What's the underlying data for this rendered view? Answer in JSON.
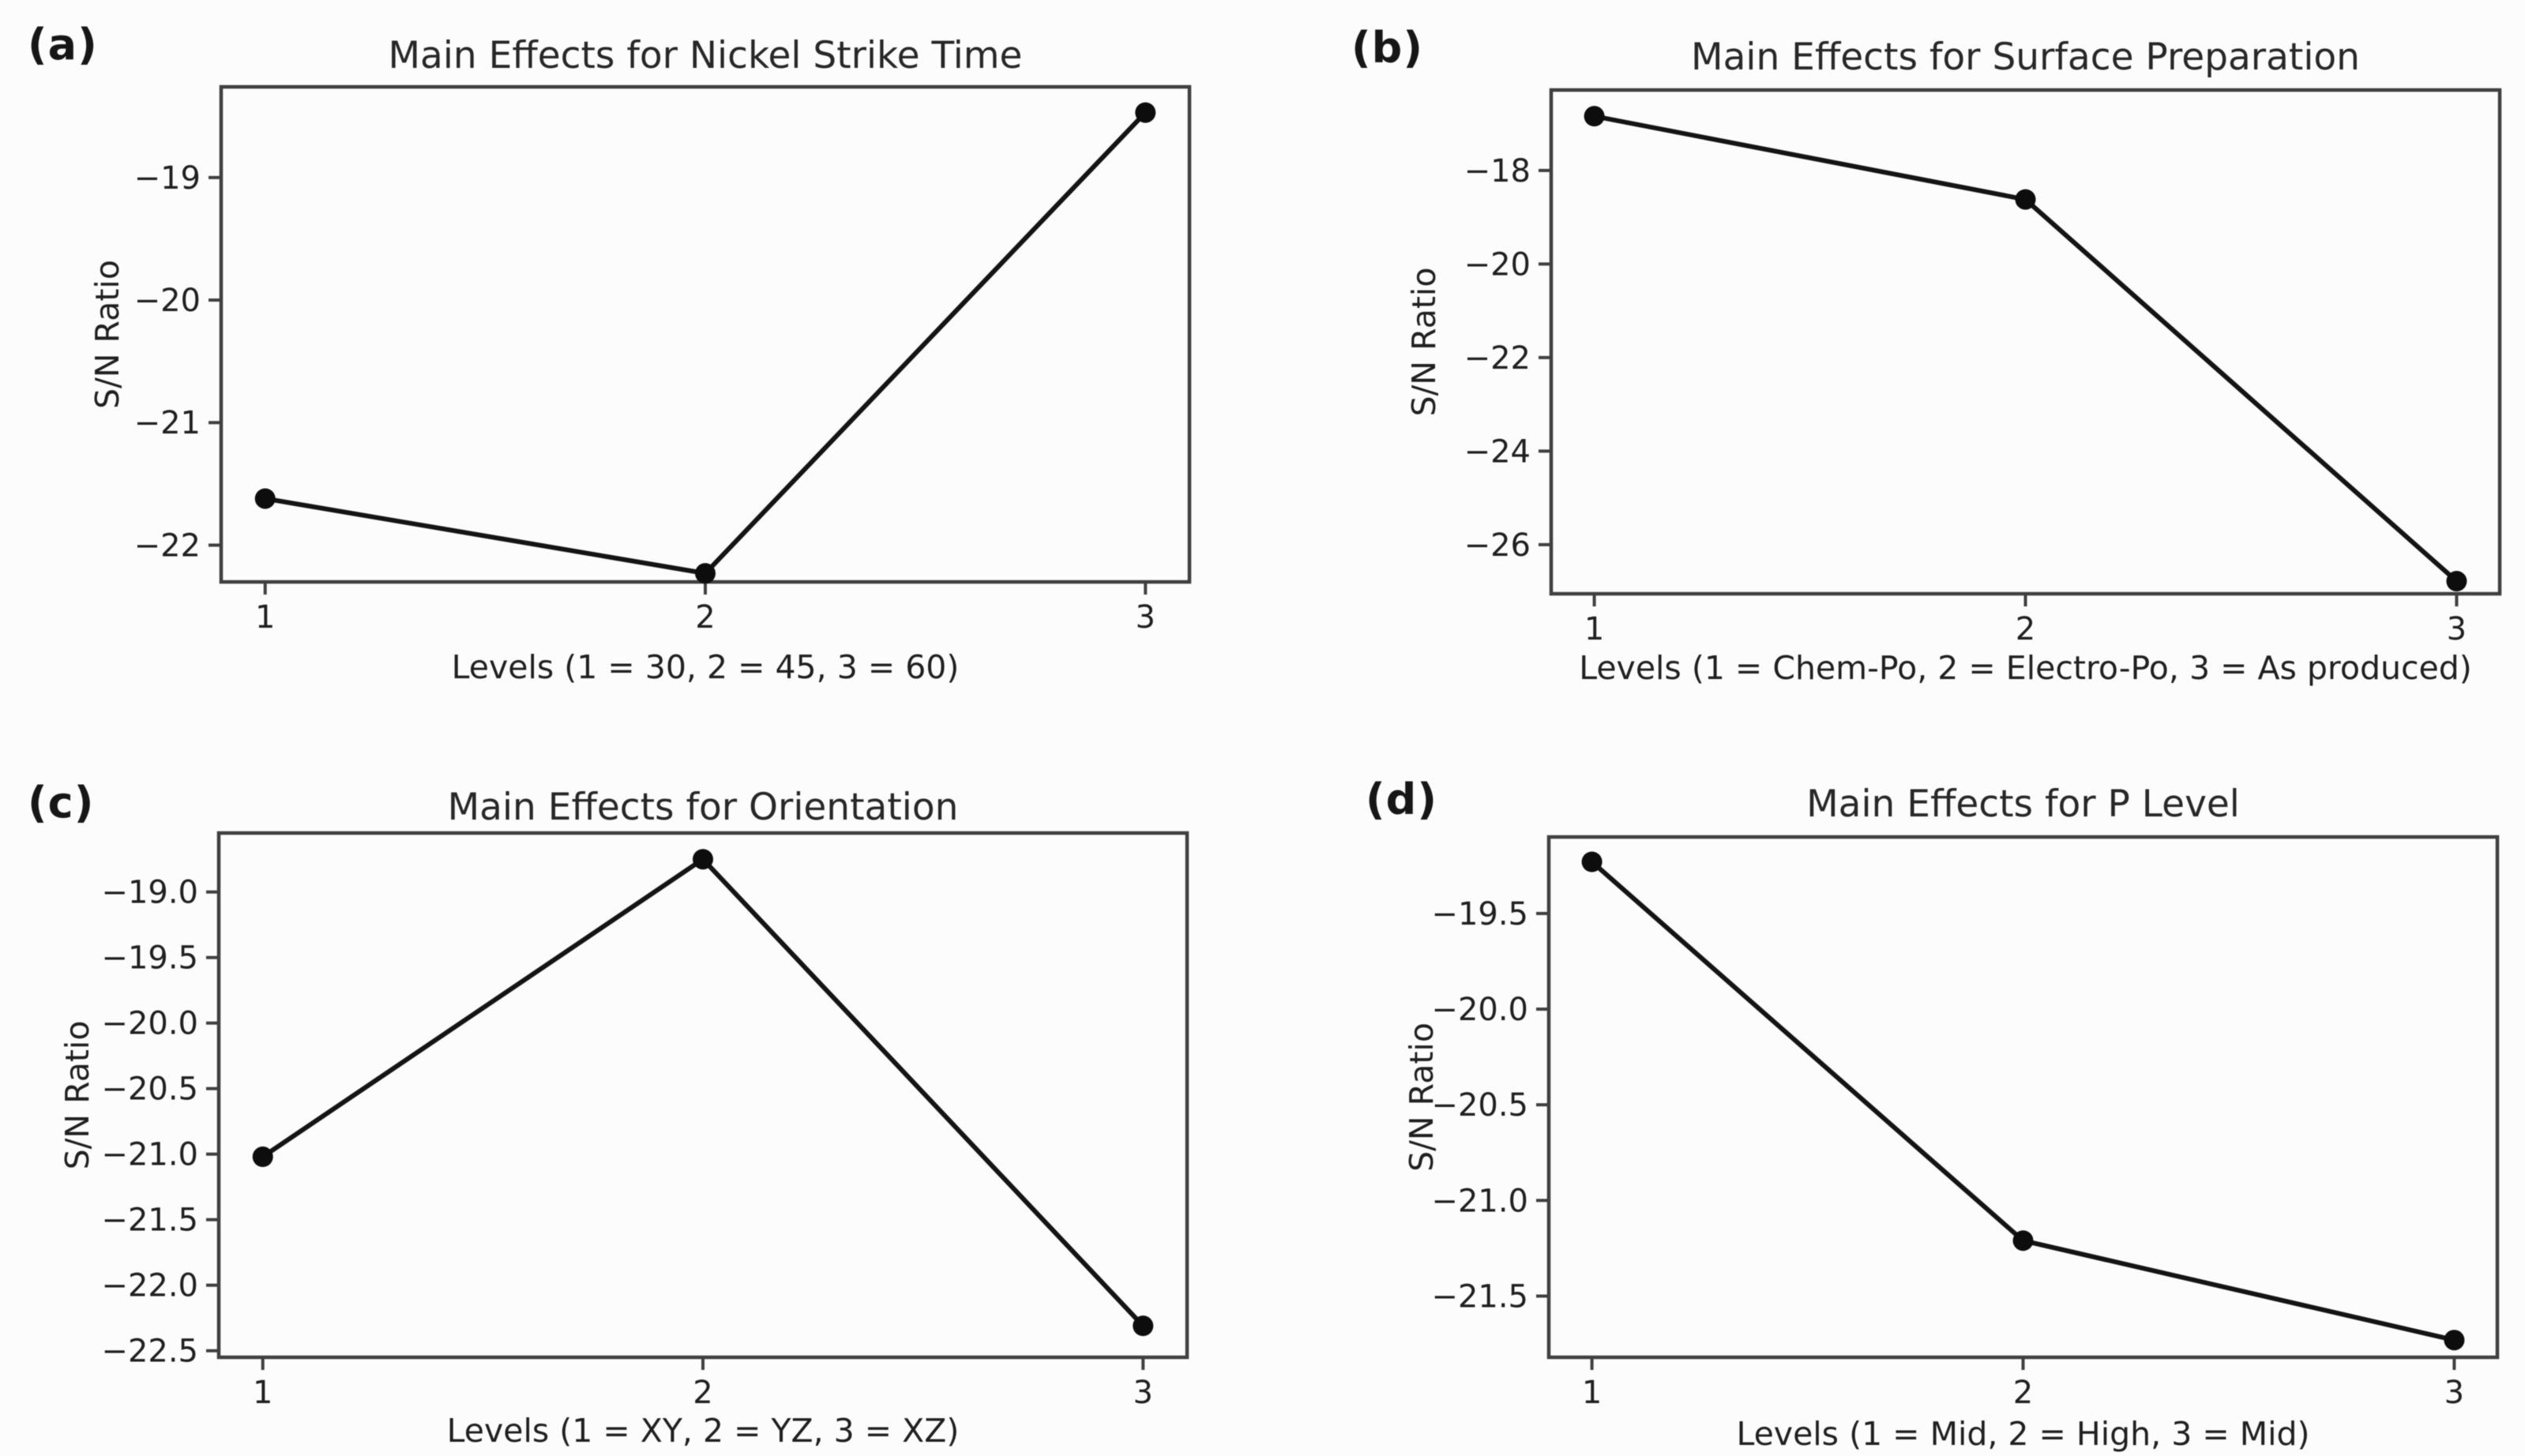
{
  "figure": {
    "background": "#fcfcfc",
    "text_color": "#1f1f1f",
    "title_color": "#272727",
    "line_color": "#141414",
    "marker_color": "#0d0d0d",
    "spine_color": "#3f3f3f"
  },
  "chart_data": [
    {
      "id": "a",
      "panel_label": "(a)",
      "type": "line",
      "title": "Main Effects for Nickel Strike Time",
      "xlabel": "Levels (1 = 30, 2 = 45, 3 = 60)",
      "ylabel": "S/N Ratio",
      "x": [
        1,
        2,
        3
      ],
      "xtick_labels": [
        "1",
        "2",
        "3"
      ],
      "values": [
        -21.62,
        -22.23,
        -18.47
      ],
      "yticks": [
        -19,
        -20,
        -21,
        -22
      ],
      "ytick_labels": [
        "−19",
        "−20",
        "−21",
        "−22"
      ],
      "xlim": [
        0.9,
        3.1
      ],
      "ylim": [
        -22.3,
        -18.26
      ],
      "grid": false,
      "legend": null,
      "marker": "filled-circle"
    },
    {
      "id": "b",
      "panel_label": "(b)",
      "type": "line",
      "title": "Main Effects for Surface Preparation",
      "xlabel": "Levels (1 = Chem-Po, 2 = Electro-Po, 3 = As produced)",
      "ylabel": "S/N Ratio",
      "x": [
        1,
        2,
        3
      ],
      "xtick_labels": [
        "1",
        "2",
        "3"
      ],
      "values": [
        -16.84,
        -18.62,
        -26.78
      ],
      "yticks": [
        -18,
        -20,
        -22,
        -24,
        -26
      ],
      "ytick_labels": [
        "−18",
        "−20",
        "−22",
        "−24",
        "−26"
      ],
      "xlim": [
        0.9,
        3.1
      ],
      "ylim": [
        -27.05,
        -16.28
      ],
      "grid": false,
      "legend": null,
      "marker": "filled-circle"
    },
    {
      "id": "c",
      "panel_label": "(c)",
      "type": "line",
      "title": "Main Effects for Orientation",
      "xlabel": "Levels (1 = XY, 2 = YZ, 3 = XZ)",
      "ylabel": "S/N Ratio",
      "x": [
        1,
        2,
        3
      ],
      "xtick_labels": [
        "1",
        "2",
        "3"
      ],
      "values": [
        -21.02,
        -18.75,
        -22.31
      ],
      "yticks": [
        -19.0,
        -19.5,
        -20.0,
        -20.5,
        -21.0,
        -21.5,
        -22.0,
        -22.5
      ],
      "ytick_labels": [
        "−19.0",
        "−19.5",
        "−20.0",
        "−20.5",
        "−21.0",
        "−21.5",
        "−22.0",
        "−22.5"
      ],
      "xlim": [
        0.9,
        3.1
      ],
      "ylim": [
        -22.55,
        -18.55
      ],
      "grid": false,
      "legend": null,
      "marker": "filled-circle"
    },
    {
      "id": "d",
      "panel_label": "(d)",
      "type": "line",
      "title": "Main Effects for P Level",
      "xlabel": "Levels (1 = Mid, 2 = High, 3 = Mid)",
      "ylabel": "S/N Ratio",
      "x": [
        1,
        2,
        3
      ],
      "xtick_labels": [
        "1",
        "2",
        "3"
      ],
      "values": [
        -19.23,
        -21.21,
        -21.73
      ],
      "yticks": [
        -19.5,
        -20.0,
        -20.5,
        -21.0,
        -21.5
      ],
      "ytick_labels": [
        "−19.5",
        "−20.0",
        "−20.5",
        "−21.0",
        "−21.5"
      ],
      "xlim": [
        0.9,
        3.1
      ],
      "ylim": [
        -21.82,
        -19.1
      ],
      "grid": false,
      "legend": null,
      "marker": "filled-circle"
    }
  ]
}
